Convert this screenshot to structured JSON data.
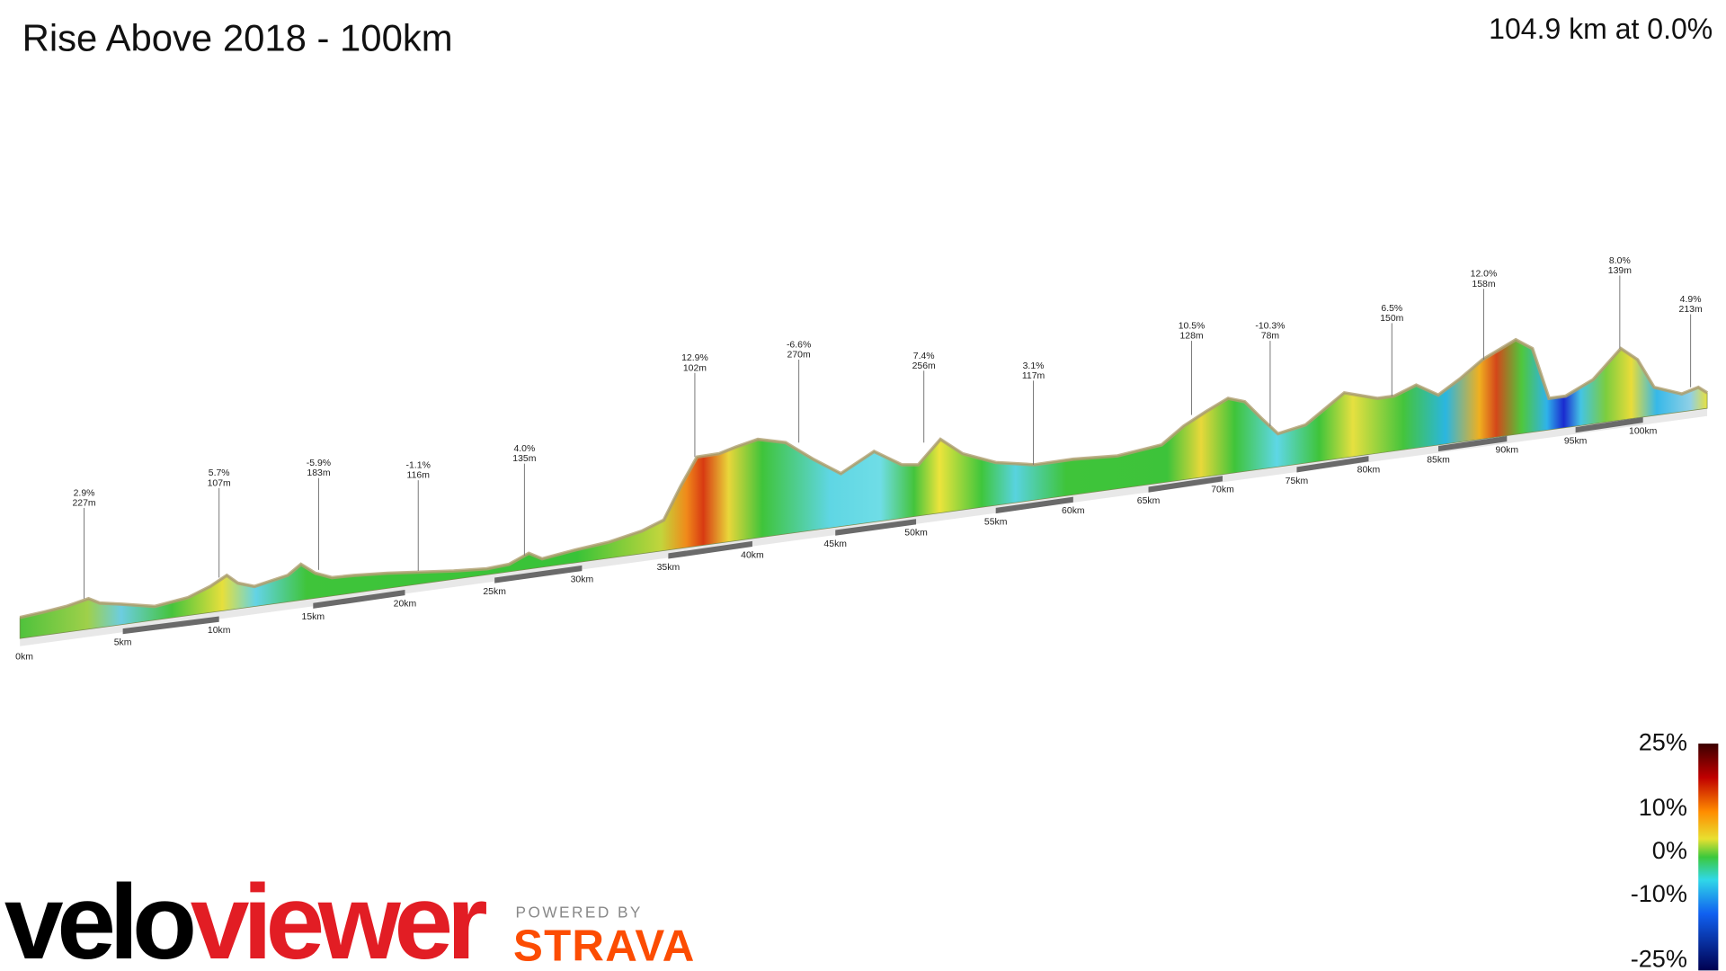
{
  "title": "Rise Above 2018 - 100km",
  "summary": "104.9 km at 0.0%",
  "markers": [
    {
      "grade": "2.9%",
      "elevation": "227m"
    },
    {
      "grade": "5.7%",
      "elevation": "107m"
    },
    {
      "grade": "-5.9%",
      "elevation": "183m"
    },
    {
      "grade": "-1.1%",
      "elevation": "116m"
    },
    {
      "grade": "4.0%",
      "elevation": "135m"
    },
    {
      "grade": "12.9%",
      "elevation": "102m"
    },
    {
      "grade": "-6.6%",
      "elevation": "270m"
    },
    {
      "grade": "7.4%",
      "elevation": "256m"
    },
    {
      "grade": "3.1%",
      "elevation": "117m"
    },
    {
      "grade": "10.5%",
      "elevation": "128m"
    },
    {
      "grade": "-10.3%",
      "elevation": "78m"
    },
    {
      "grade": "6.5%",
      "elevation": "150m"
    },
    {
      "grade": "12.0%",
      "elevation": "158m"
    },
    {
      "grade": "8.0%",
      "elevation": "139m"
    },
    {
      "grade": "4.9%",
      "elevation": "213m"
    }
  ],
  "distance_labels": [
    "0km",
    "5km",
    "10km",
    "15km",
    "20km",
    "25km",
    "30km",
    "35km",
    "40km",
    "45km",
    "50km",
    "55km",
    "60km",
    "65km",
    "70km",
    "75km",
    "80km",
    "85km",
    "90km",
    "95km",
    "100km"
  ],
  "legend": {
    "labels": [
      "25%",
      "10%",
      "0%",
      "-10%",
      "-25%"
    ]
  },
  "branding": {
    "logo_a": "velo",
    "logo_b": "viewer",
    "powered_by": "POWERED BY",
    "partner": "STRAVA"
  }
}
